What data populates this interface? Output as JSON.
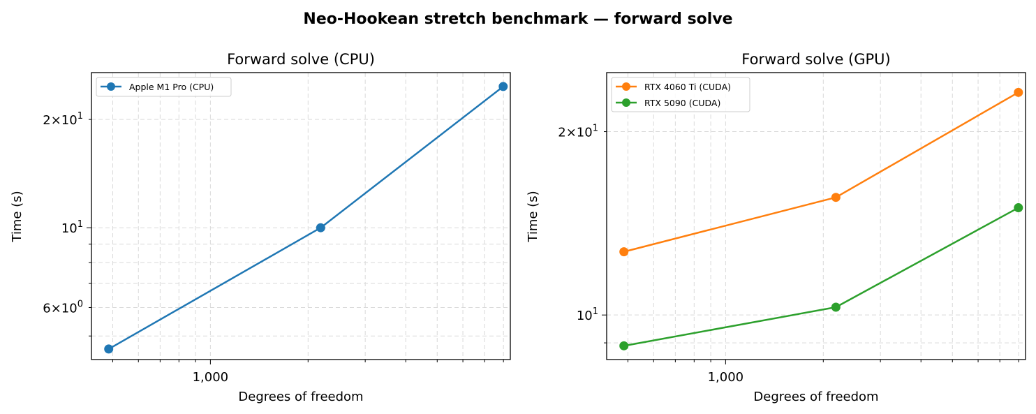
{
  "figure": {
    "title": "Neo-Hookean stretch benchmark — forward solve"
  },
  "chart_data": [
    {
      "type": "line",
      "title": "Forward solve (CPU)",
      "xlabel": "Degrees of freedom",
      "ylabel": "Time (s)",
      "xscale": "log",
      "yscale": "log",
      "grid": true,
      "legend_position": "top-left",
      "xlim": [
        430,
        8400
      ],
      "ylim": [
        4.3,
        27.0
      ],
      "x_ticks": [
        {
          "value": 1000,
          "label": "1,000"
        }
      ],
      "y_ticks": [
        {
          "value": 6,
          "base": "6",
          "exp": "0"
        },
        {
          "value": 10,
          "base": "10",
          "exp": "1"
        },
        {
          "value": 20,
          "base": "2",
          "exp": "1"
        }
      ],
      "series": [
        {
          "name": "Apple M1 Pro (CPU)",
          "color": "#1f77b4",
          "x": [
            486,
            2187,
            7986
          ],
          "y": [
            4.6,
            10.0,
            24.7
          ]
        }
      ]
    },
    {
      "type": "line",
      "title": "Forward solve (GPU)",
      "xlabel": "Degrees of freedom",
      "ylabel": "Time (s)",
      "xscale": "log",
      "yscale": "log",
      "grid": true,
      "legend_position": "top-left",
      "xlim": [
        430,
        8400
      ],
      "ylim": [
        8.45,
        25.0
      ],
      "x_ticks": [
        {
          "value": 1000,
          "label": "1,000"
        }
      ],
      "y_ticks": [
        {
          "value": 10,
          "base": "10",
          "exp": "1"
        },
        {
          "value": 20,
          "base": "2",
          "exp": "1"
        }
      ],
      "series": [
        {
          "name": "RTX 4060 Ti (CUDA)",
          "color": "#ff7f0e",
          "x": [
            486,
            2187,
            7986
          ],
          "y": [
            12.7,
            15.6,
            23.2
          ]
        },
        {
          "name": "RTX 5090 (CUDA)",
          "color": "#2ca02c",
          "x": [
            486,
            2187,
            7986
          ],
          "y": [
            8.9,
            10.3,
            15.0
          ]
        }
      ]
    }
  ]
}
